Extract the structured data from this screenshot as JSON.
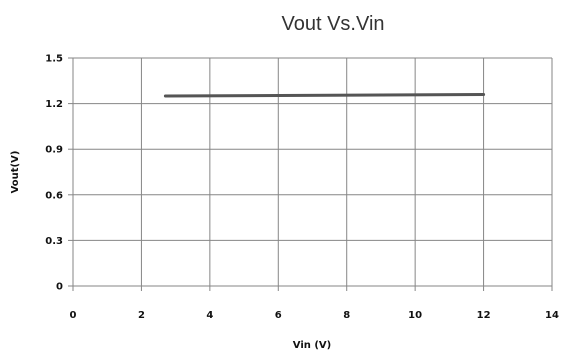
{
  "chart_data": {
    "type": "line",
    "title": "Vout Vs.Vin",
    "xlabel": "Vin (V)",
    "ylabel": "Vout(V)",
    "xlim": [
      0,
      14
    ],
    "ylim": [
      0,
      1.5
    ],
    "xticks": [
      0,
      2,
      4,
      6,
      8,
      10,
      12,
      14
    ],
    "yticks": [
      0,
      0.3,
      0.6,
      0.9,
      1.2,
      1.5
    ],
    "xtick_labels": [
      "0",
      "2",
      "4",
      "6",
      "8",
      "10",
      "12",
      "14"
    ],
    "ytick_labels": [
      "0",
      "0.3",
      "0.6",
      "0.9",
      "1.2",
      "1.5"
    ],
    "grid": true,
    "legend": "none",
    "series": [
      {
        "color": "#555555",
        "x": [
          2.7,
          12
        ],
        "y": [
          1.25,
          1.26
        ]
      }
    ]
  }
}
